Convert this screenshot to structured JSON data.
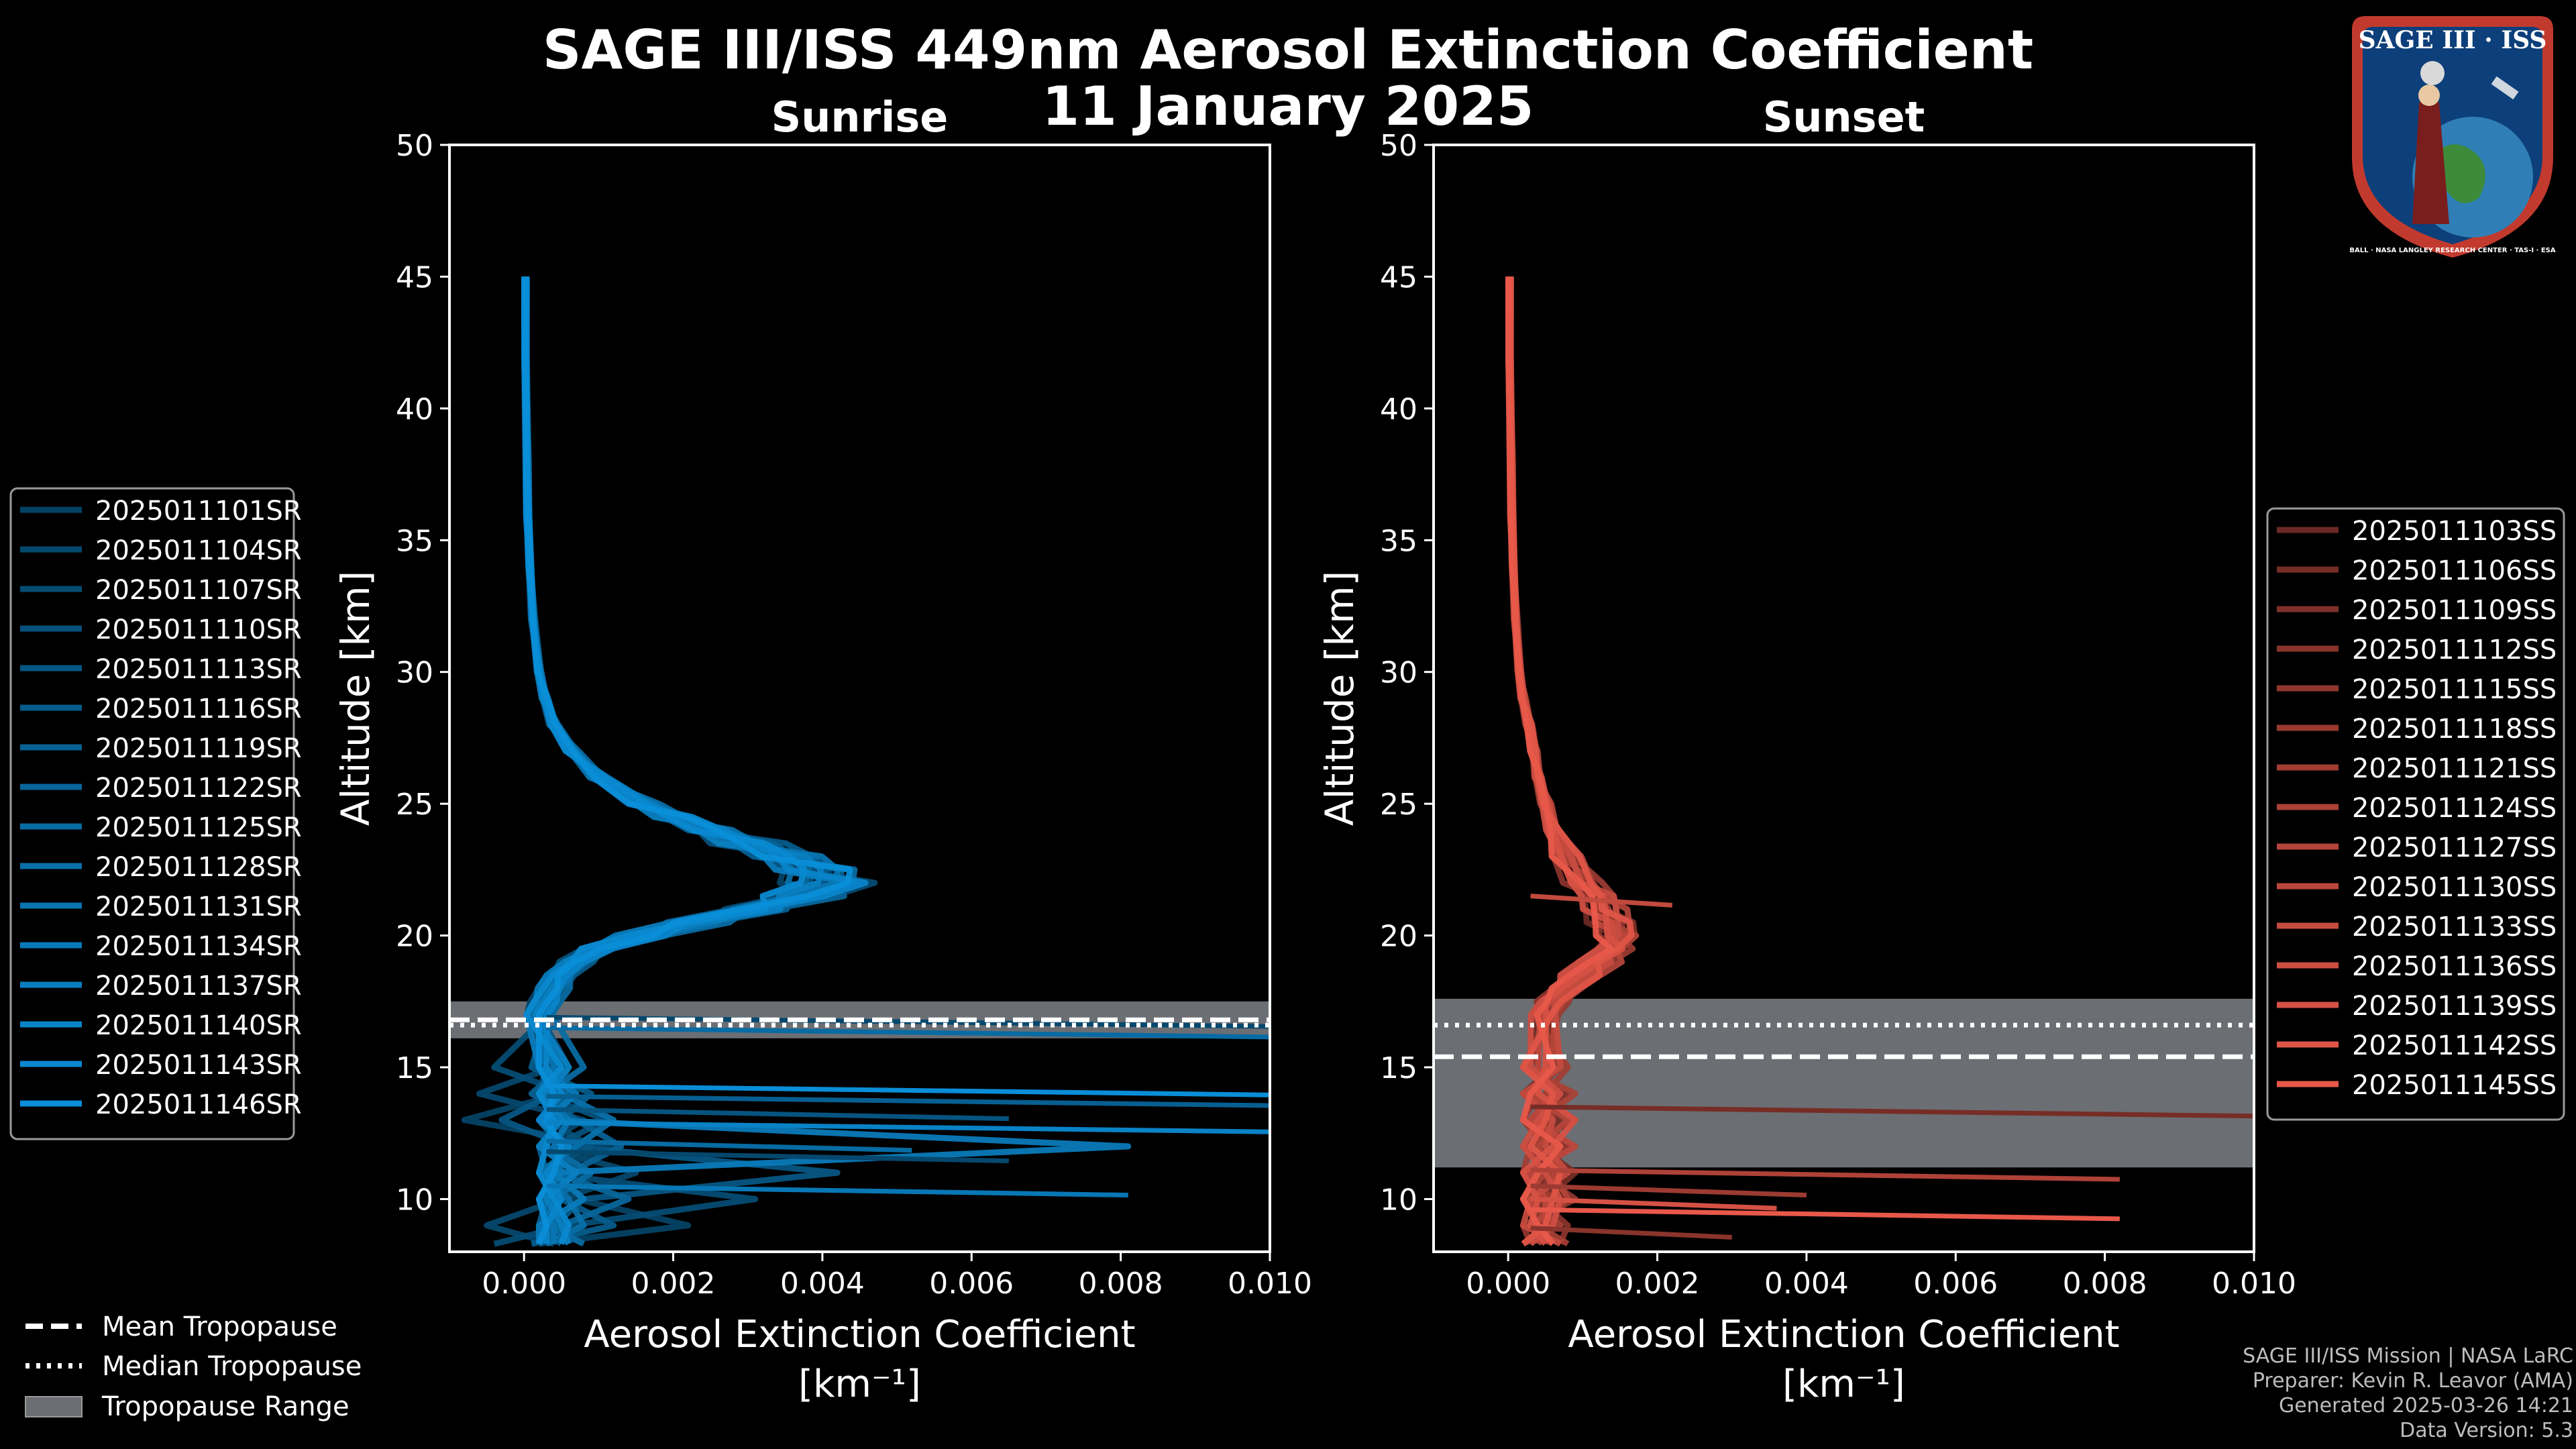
{
  "title": "SAGE III/ISS 449nm Aerosol Extinction Coefficient",
  "subtitle": "11 January 2025",
  "logo": {
    "name": "SAGE III · ISS",
    "ring_text": "BALL · NASA LANGLEY RESEARCH CENTER · TAS-I · ESA"
  },
  "credits": {
    "mission": "SAGE III/ISS Mission | NASA LaRC",
    "preparer": "Preparer: Kevin R. Leavor (AMA)",
    "generated": "Generated 2025-03-26 14:21",
    "version": "Data Version: 5.3"
  },
  "tropopause_legend": {
    "mean": "Mean Tropopause",
    "median": "Median Tropopause",
    "range": "Tropopause Range"
  },
  "chart_data": [
    {
      "type": "line",
      "panel": "sunrise",
      "title": "Sunrise",
      "xlabel": "Aerosol Extinction Coefficient",
      "xunit": "[km⁻¹]",
      "ylabel": "Altitude [km]",
      "xlim": [
        -0.001,
        0.01
      ],
      "ylim": [
        8,
        50
      ],
      "xticks": [
        "0.000",
        "0.002",
        "0.004",
        "0.006",
        "0.008",
        "0.010"
      ],
      "xtick_values": [
        0,
        0.002,
        0.004,
        0.006,
        0.008,
        0.01
      ],
      "yticks": [
        10,
        15,
        20,
        25,
        30,
        35,
        40,
        45,
        50
      ],
      "base_color": "#0a8ed8",
      "legend_position": "left",
      "tropopause": {
        "mean": 16.8,
        "median": 16.6,
        "range": [
          16.1,
          17.5
        ]
      },
      "profile_altitudes": [
        45,
        42,
        40,
        38,
        36,
        34,
        32,
        30,
        29,
        28,
        27,
        26,
        25,
        24.5,
        24,
        23.5,
        23,
        22.5,
        22,
        21.5,
        21,
        20.5,
        20,
        19.5,
        19,
        18.5,
        18,
        17.5,
        17
      ],
      "profile_values": [
        2e-05,
        2e-05,
        3e-05,
        4e-05,
        5e-05,
        8e-05,
        0.00012,
        0.0002,
        0.00028,
        0.0004,
        0.00065,
        0.001,
        0.0016,
        0.002,
        0.0025,
        0.003,
        0.0035,
        0.0039,
        0.0041,
        0.0038,
        0.0031,
        0.0023,
        0.0016,
        0.001,
        0.0007,
        0.0005,
        0.0004,
        0.0003,
        0.0002
      ],
      "series": [
        {
          "name": "2025011101SR",
          "low_x": [
            0.0002,
            0.0005,
            -0.0008,
            0.0012,
            0.0003,
            0.0007,
            0.0022
          ]
        },
        {
          "name": "2025011104SR",
          "low_x": [
            0.0004,
            -0.0006,
            0.0008,
            0.0002,
            0.0015,
            0.0005,
            -0.0005
          ]
        },
        {
          "name": "2025011107SR",
          "low_x": [
            -0.0004,
            0.0006,
            0.0003,
            0.0009,
            0.0002,
            0.0031,
            0.0006
          ]
        },
        {
          "name": "2025011110SR",
          "low_x": [
            0.0003,
            0.0002,
            0.0011,
            0.0004,
            0.0007,
            0.0002,
            0.0003
          ]
        },
        {
          "name": "2025011113SR",
          "low_x": [
            0.0006,
            0.0004,
            -0.0003,
            0.0006,
            0.0042,
            0.0008,
            0.0004
          ]
        },
        {
          "name": "2025011116SR",
          "low_x": [
            0.0001,
            0.0009,
            0.0005,
            0.0002,
            0.0003,
            0.0005,
            0.0012
          ]
        },
        {
          "name": "2025011119SR",
          "low_x": [
            0.0005,
            0.0001,
            0.0007,
            0.0013,
            0.0006,
            0.0003,
            0.0002
          ]
        },
        {
          "name": "2025011122SR",
          "low_x": [
            0.0002,
            0.0006,
            0.0002,
            0.0005,
            0.0004,
            0.0014,
            0.0005
          ]
        },
        {
          "name": "2025011125SR",
          "low_x": [
            0.0008,
            0.0003,
            0.0004,
            0.0003,
            0.0009,
            0.0004,
            0.0003
          ]
        },
        {
          "name": "2025011128SR",
          "low_x": [
            0.0003,
            0.0005,
            0.0012,
            0.0007,
            0.0002,
            0.0006,
            0.0008
          ]
        },
        {
          "name": "2025011131SR",
          "low_x": [
            0.0004,
            0.0002,
            0.0006,
            0.0004,
            0.0005,
            0.0002,
            0.0004
          ]
        },
        {
          "name": "2025011134SR",
          "low_x": [
            0.0002,
            0.0007,
            0.0003,
            0.0081,
            0.0004,
            0.0008,
            0.0002
          ]
        },
        {
          "name": "2025011137SR",
          "low_x": [
            0.0006,
            0.0003,
            0.0005,
            0.0002,
            0.0007,
            0.0003,
            0.0005
          ]
        },
        {
          "name": "2025011140SR",
          "low_x": [
            0.0003,
            0.0005,
            0.0002,
            0.0006,
            0.0003,
            0.0005,
            0.0003
          ]
        },
        {
          "name": "2025011143SR",
          "low_x": [
            0.0005,
            0.0002,
            0.0004,
            0.0003,
            0.0002,
            0.0004,
            0.0006
          ]
        },
        {
          "name": "2025011146SR",
          "low_x": [
            0.0002,
            0.0004,
            0.0003,
            0.0005,
            0.0004,
            0.0002,
            0.0003
          ]
        }
      ],
      "spikes": [
        {
          "y": 16.9,
          "x": 0.01
        },
        {
          "y": 16.5,
          "x": 0.01
        },
        {
          "y": 14.3,
          "x": 0.01
        },
        {
          "y": 13.9,
          "x": 0.01
        },
        {
          "y": 12.9,
          "x": 0.01
        },
        {
          "y": 13.4,
          "x": 0.0065
        },
        {
          "y": 10.5,
          "x": 0.0081
        },
        {
          "y": 11.8,
          "x": 0.0065
        },
        {
          "y": 12.2,
          "x": 0.0052
        }
      ]
    },
    {
      "type": "line",
      "panel": "sunset",
      "title": "Sunset",
      "xlabel": "Aerosol Extinction Coefficient",
      "xunit": "[km⁻¹]",
      "ylabel": "Altitude [km]",
      "xlim": [
        -0.001,
        0.01
      ],
      "ylim": [
        8,
        50
      ],
      "xticks": [
        "0.000",
        "0.002",
        "0.004",
        "0.006",
        "0.008",
        "0.010"
      ],
      "xtick_values": [
        0,
        0.002,
        0.004,
        0.006,
        0.008,
        0.01
      ],
      "yticks": [
        10,
        15,
        20,
        25,
        30,
        35,
        40,
        45,
        50
      ],
      "base_color": "#e8584a",
      "legend_position": "right",
      "tropopause": {
        "mean": 15.4,
        "median": 16.6,
        "range": [
          11.2,
          17.6
        ]
      },
      "profile_altitudes": [
        45,
        42,
        40,
        38,
        36,
        34,
        32,
        30,
        29,
        28,
        27,
        26,
        25,
        24,
        23,
        22,
        21.5,
        21,
        20.5,
        20,
        19.5,
        19,
        18.5,
        18,
        17.5,
        17
      ],
      "profile_values": [
        2e-05,
        2e-05,
        3e-05,
        4e-05,
        5e-05,
        7e-05,
        0.0001,
        0.00015,
        0.0002,
        0.00028,
        0.00035,
        0.0004,
        0.0005,
        0.0006,
        0.0008,
        0.001,
        0.0012,
        0.0013,
        0.0014,
        0.0015,
        0.0014,
        0.0012,
        0.001,
        0.0008,
        0.0006,
        0.0005
      ],
      "series": [
        {
          "name": "2025011103SS",
          "low_x": [
            0.0004,
            0.0006,
            0.0003,
            0.0008,
            0.0005,
            0.0002,
            0.0006
          ]
        },
        {
          "name": "2025011106SS",
          "low_x": [
            0.0006,
            0.0002,
            0.0007,
            0.0004,
            0.0009,
            0.0005,
            0.0003
          ]
        },
        {
          "name": "2025011109SS",
          "low_x": [
            0.0002,
            0.0008,
            0.0004,
            0.0006,
            0.0003,
            0.0007,
            0.0005
          ]
        },
        {
          "name": "2025011112SS",
          "low_x": [
            0.0007,
            0.0003,
            0.0009,
            0.0002,
            0.0006,
            0.0004,
            0.0008
          ]
        },
        {
          "name": "2025011115SS",
          "low_x": [
            0.0003,
            0.0007,
            0.0005,
            0.0008,
            0.0004,
            0.0009,
            0.0002
          ]
        },
        {
          "name": "2025011118SS",
          "low_x": [
            0.0005,
            0.0004,
            0.0002,
            0.0005,
            0.0007,
            0.0003,
            0.0006
          ]
        },
        {
          "name": "2025011121SS",
          "low_x": [
            0.0008,
            0.0005,
            0.0006,
            0.0003,
            0.0002,
            0.0006,
            0.0004
          ]
        },
        {
          "name": "2025011124SS",
          "low_x": [
            0.0002,
            0.0009,
            0.0004,
            0.0007,
            0.0005,
            0.0002,
            0.0007
          ]
        },
        {
          "name": "2025011127SS",
          "low_x": [
            0.0006,
            0.0003,
            0.0008,
            0.0004,
            0.0006,
            0.0008,
            0.0003
          ]
        },
        {
          "name": "2025011130SS",
          "low_x": [
            0.0004,
            0.0006,
            0.0003,
            0.0009,
            0.0003,
            0.0005,
            0.0005
          ]
        },
        {
          "name": "2025011133SS",
          "low_x": [
            0.0007,
            0.0002,
            0.0006,
            0.0005,
            0.0008,
            0.0003,
            0.0002
          ]
        },
        {
          "name": "2025011136SS",
          "low_x": [
            0.0003,
            0.0007,
            0.0004,
            0.0002,
            0.0005,
            0.0007,
            0.0006
          ]
        },
        {
          "name": "2025011139SS",
          "low_x": [
            0.0005,
            0.0004,
            0.0009,
            0.0006,
            0.0002,
            0.0004,
            0.0003
          ]
        },
        {
          "name": "2025011142SS",
          "low_x": [
            0.0002,
            0.0006,
            0.0005,
            0.0003,
            0.0007,
            0.0006,
            0.0005
          ]
        },
        {
          "name": "2025011145SS",
          "low_x": [
            0.0006,
            0.0003,
            0.0002,
            0.0007,
            0.0004,
            0.0002,
            0.0004
          ]
        }
      ],
      "spikes": [
        {
          "y": 13.5,
          "x": 0.01
        },
        {
          "y": 11.1,
          "x": 0.0082
        },
        {
          "y": 9.6,
          "x": 0.0082
        },
        {
          "y": 10.5,
          "x": 0.004
        },
        {
          "y": 10.0,
          "x": 0.0036
        },
        {
          "y": 8.9,
          "x": 0.003
        },
        {
          "y": 21.5,
          "x": 0.0022
        }
      ]
    }
  ]
}
